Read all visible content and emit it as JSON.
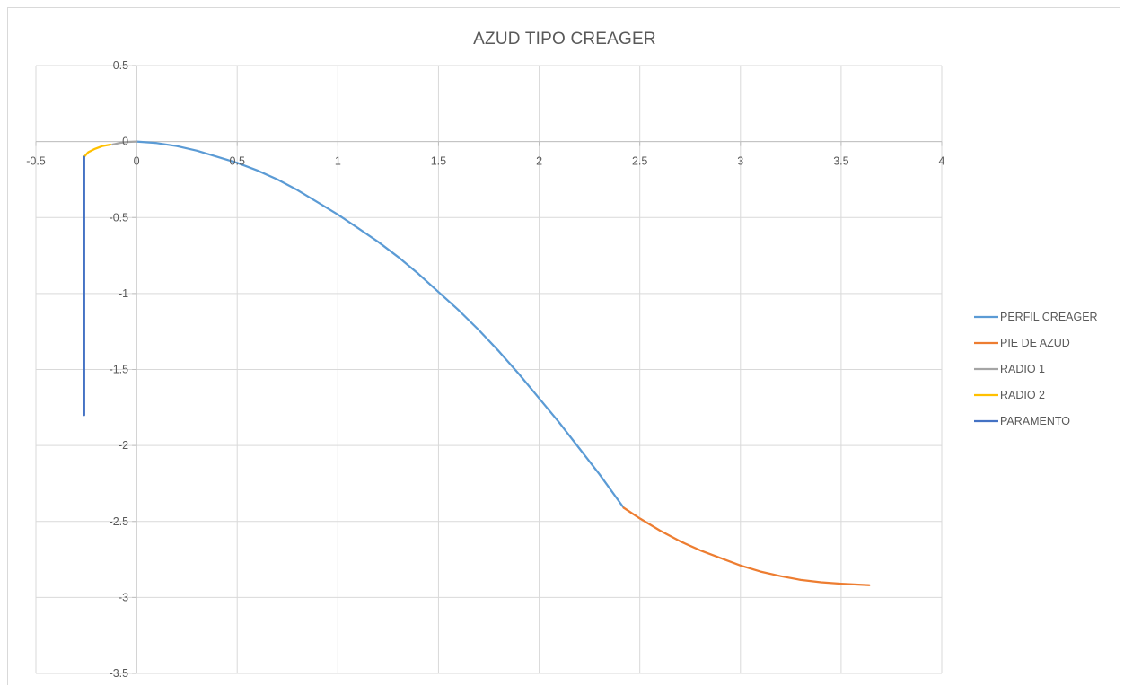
{
  "chart_data": {
    "type": "scatter",
    "title": "AZUD TIPO CREAGER",
    "xlabel": "",
    "ylabel": "",
    "xlim": [
      -0.5,
      4
    ],
    "ylim": [
      -3.5,
      0.5
    ],
    "x_ticks": [
      -0.5,
      0,
      0.5,
      1,
      1.5,
      2,
      2.5,
      3,
      3.5,
      4
    ],
    "x_tick_labels": [
      "-0.5",
      "0",
      "0.5",
      "1",
      "1.5",
      "2",
      "2.5",
      "3",
      "3.5",
      "4"
    ],
    "y_ticks": [
      0.5,
      0,
      -0.5,
      -1,
      -1.5,
      -2,
      -2.5,
      -3,
      -3.5
    ],
    "y_tick_labels": [
      "0.5",
      "0",
      "-0.5",
      "-1",
      "-1.5",
      "-2",
      "-2.5",
      "-3",
      "-3.5"
    ],
    "grid": true,
    "legend_position": "right",
    "series": [
      {
        "name": "PERFIL CREAGER",
        "color": "#5b9bd5",
        "x": [
          0,
          0.1,
          0.2,
          0.3,
          0.4,
          0.5,
          0.6,
          0.7,
          0.8,
          0.9,
          1.0,
          1.1,
          1.2,
          1.3,
          1.4,
          1.5,
          1.6,
          1.7,
          1.8,
          1.9,
          2.0,
          2.1,
          2.2,
          2.3,
          2.42
        ],
        "y": [
          0,
          -0.01,
          -0.03,
          -0.06,
          -0.1,
          -0.14,
          -0.19,
          -0.25,
          -0.32,
          -0.4,
          -0.48,
          -0.57,
          -0.66,
          -0.76,
          -0.87,
          -0.99,
          -1.11,
          -1.24,
          -1.38,
          -1.53,
          -1.69,
          -1.85,
          -2.02,
          -2.19,
          -2.41
        ]
      },
      {
        "name": "PIE DE AZUD",
        "color": "#ed7d31",
        "x": [
          2.42,
          2.5,
          2.6,
          2.7,
          2.8,
          2.9,
          3.0,
          3.1,
          3.2,
          3.3,
          3.4,
          3.5,
          3.64
        ],
        "y": [
          -2.41,
          -2.48,
          -2.56,
          -2.63,
          -2.69,
          -2.74,
          -2.79,
          -2.83,
          -2.86,
          -2.885,
          -2.9,
          -2.91,
          -2.92
        ]
      },
      {
        "name": "RADIO 1",
        "color": "#a5a5a5",
        "x": [
          -0.12,
          -0.08,
          -0.04,
          0
        ],
        "y": [
          -0.02,
          -0.008,
          -0.002,
          0
        ]
      },
      {
        "name": "RADIO 2",
        "color": "#ffc000",
        "x": [
          -0.26,
          -0.24,
          -0.21,
          -0.17,
          -0.13
        ],
        "y": [
          -0.1,
          -0.07,
          -0.05,
          -0.03,
          -0.02
        ]
      },
      {
        "name": "PARAMENTO",
        "color": "#4472c4",
        "x": [
          -0.26,
          -0.26
        ],
        "y": [
          -0.1,
          -1.8
        ]
      }
    ]
  }
}
